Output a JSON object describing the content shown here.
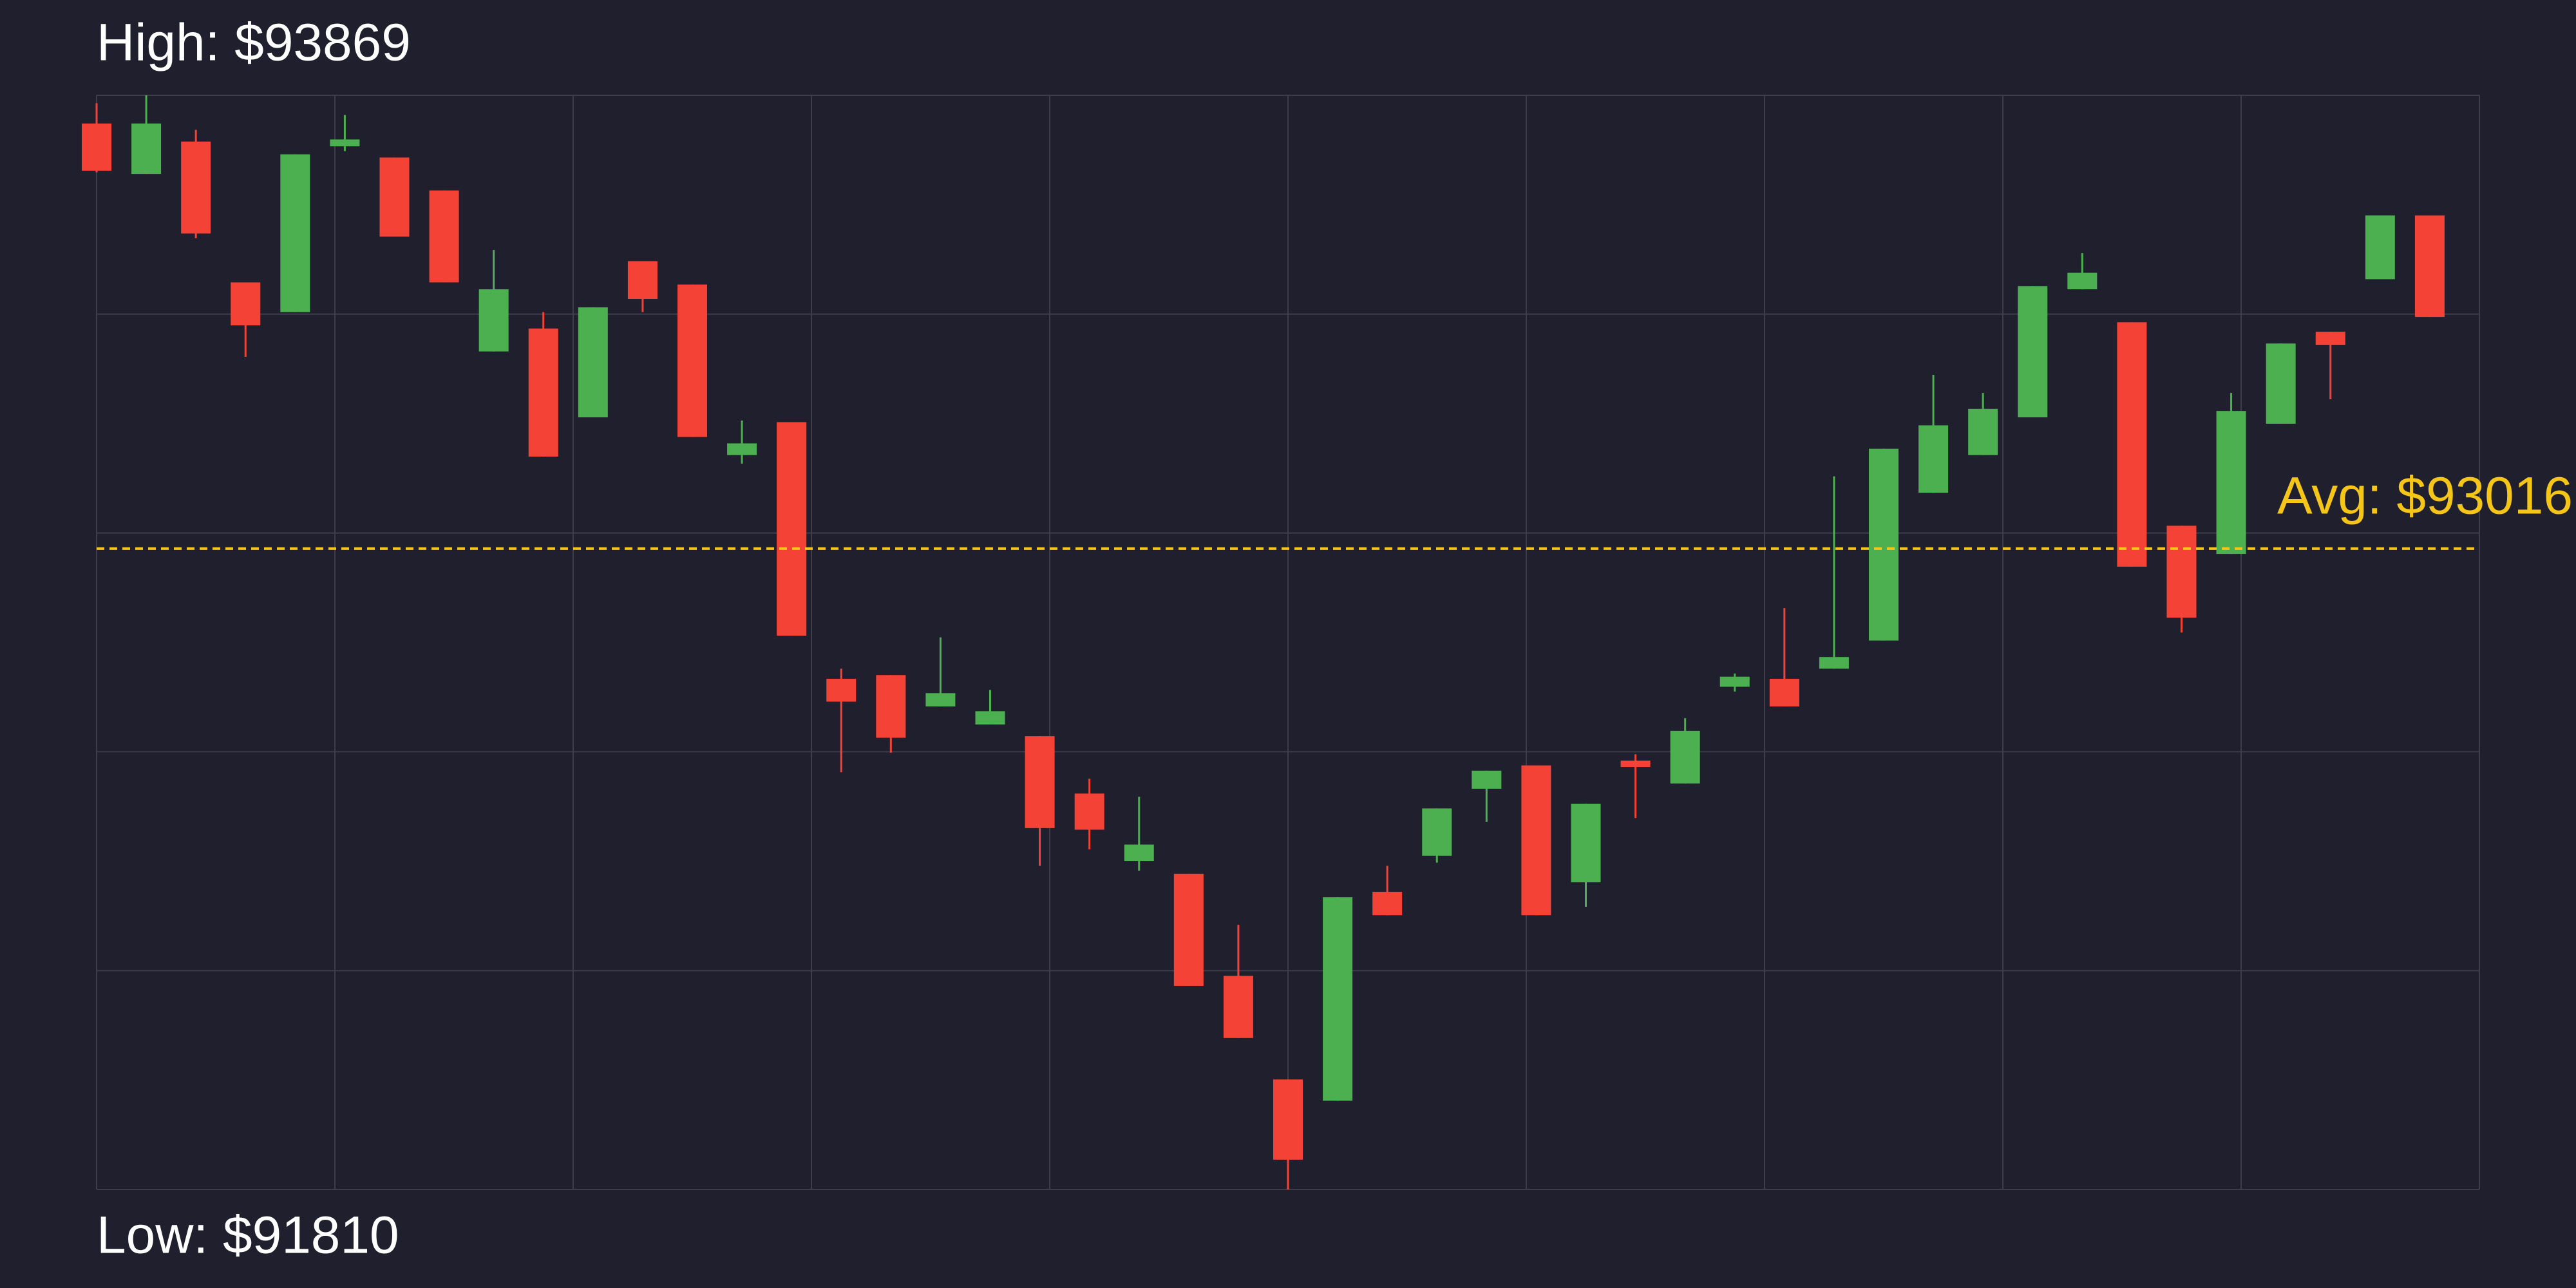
{
  "chart_data": {
    "type": "candlestick",
    "high_label": {
      "value": 93869,
      "label": "High: $93869"
    },
    "low_label": {
      "value": 91810,
      "label": "Low: $91810"
    },
    "avg": {
      "value": 93016,
      "label": "Avg: $93016",
      "color": "#f5c518"
    },
    "ylim": [
      91810,
      93869
    ],
    "grid": true,
    "up_color": "#4caf50",
    "down_color": "#f44336",
    "open": [
      93816,
      93721,
      93782,
      93517,
      93461,
      93773,
      93752,
      93690,
      93387,
      93430,
      93263,
      93557,
      93513,
      93192,
      93254,
      92771,
      92778,
      92719,
      92685,
      92663,
      92555,
      92428,
      92404,
      92212,
      92017,
      91977,
      92370,
      92438,
      92564,
      92608,
      92388,
      92617,
      92574,
      92756,
      92771,
      92790,
      92843,
      93121,
      93192,
      93263,
      93504,
      93442,
      93059,
      93006,
      93251,
      93424,
      93523,
      93643
    ],
    "high": [
      93854,
      93869,
      93804,
      93517,
      93758,
      93832,
      93752,
      93690,
      93578,
      93461,
      93470,
      93557,
      93513,
      93257,
      93254,
      92790,
      92778,
      92849,
      92750,
      92663,
      92583,
      92549,
      92404,
      92308,
      92017,
      92360,
      92419,
      92527,
      92598,
      92608,
      92536,
      92629,
      92697,
      92781,
      92904,
      93152,
      93204,
      93343,
      93309,
      93510,
      93572,
      93442,
      93059,
      93309,
      93402,
      93424,
      93643,
      93643
    ],
    "low": [
      93724,
      93721,
      93600,
      93377,
      93461,
      93764,
      93603,
      93517,
      93387,
      93189,
      93263,
      93461,
      93226,
      93176,
      92852,
      92595,
      92632,
      92719,
      92685,
      92419,
      92450,
      92410,
      92193,
      92095,
      91810,
      91977,
      92326,
      92425,
      92502,
      92326,
      92342,
      92509,
      92574,
      92747,
      92719,
      92790,
      92843,
      93121,
      93192,
      93263,
      93504,
      92982,
      92858,
      93006,
      93251,
      93297,
      93523,
      93452
    ],
    "close": [
      93727,
      93816,
      93609,
      93436,
      93758,
      93786,
      93603,
      93517,
      93504,
      93189,
      93470,
      93486,
      93226,
      93214,
      92852,
      92728,
      92660,
      92744,
      92710,
      92490,
      92487,
      92459,
      92193,
      92095,
      91866,
      92360,
      92326,
      92527,
      92598,
      92326,
      92536,
      92605,
      92673,
      92775,
      92719,
      92812,
      93204,
      93248,
      93279,
      93510,
      93535,
      92982,
      92886,
      93275,
      93402,
      93399,
      93643,
      93452
    ]
  }
}
